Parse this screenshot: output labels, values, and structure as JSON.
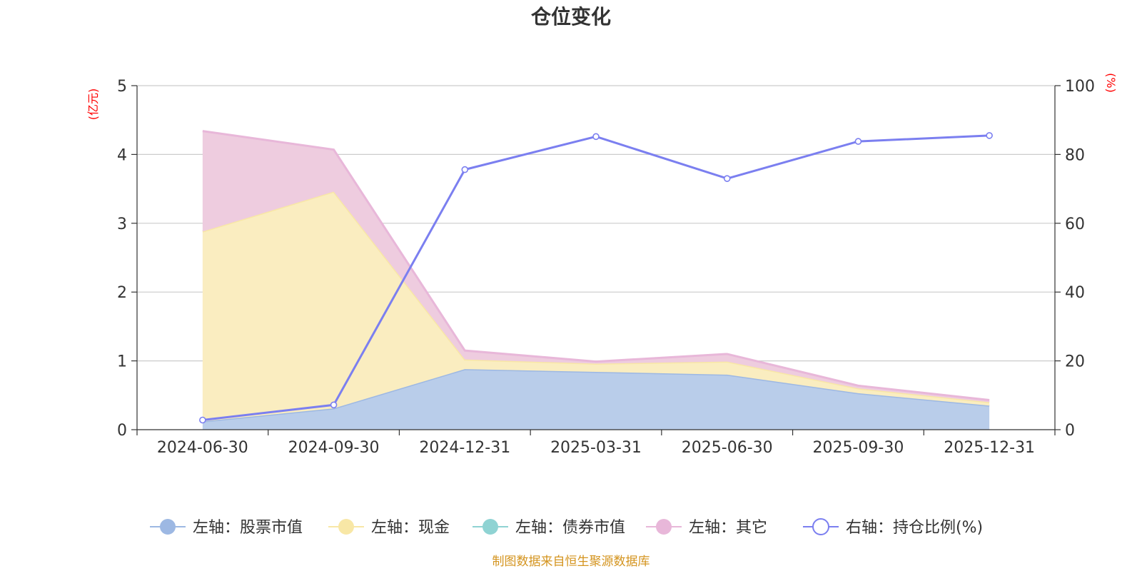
{
  "chart_data": {
    "type": "area",
    "title": "仓位变化",
    "categories": [
      "2024-06-30",
      "2024-09-30",
      "2024-12-31",
      "2025-03-31",
      "2025-06-30",
      "2025-09-30",
      "2025-12-31"
    ],
    "left_axis": {
      "unit": "(亿元)",
      "ylim": [
        0,
        5
      ],
      "ticks": [
        "0",
        "1",
        "2",
        "3",
        "4",
        "5"
      ]
    },
    "right_axis": {
      "unit": "(%)",
      "ylim": [
        0,
        100
      ],
      "ticks": [
        "0",
        "20",
        "40",
        "60",
        "80",
        "100"
      ]
    },
    "stacked_series": [
      {
        "name": "左轴：股票市值",
        "color": "#9db8e3",
        "fill": "#b9cdea",
        "values": [
          0.12,
          0.31,
          0.88,
          0.84,
          0.8,
          0.53,
          0.35
        ]
      },
      {
        "name": "左轴：现金",
        "color": "#f8e7a6",
        "fill": "#faedc0",
        "values": [
          2.76,
          3.15,
          0.14,
          0.12,
          0.19,
          0.07,
          0.05
        ]
      },
      {
        "name": "左轴：债券市值",
        "color": "#8fd3d3",
        "fill": "#b0e0e0",
        "values": [
          0,
          0,
          0,
          0,
          0,
          0,
          0
        ]
      },
      {
        "name": "左轴：其它",
        "color": "#e8b7d9",
        "fill": "#eeccdf",
        "values": [
          1.46,
          0.61,
          0.13,
          0.03,
          0.11,
          0.04,
          0.03
        ]
      }
    ],
    "line_series": {
      "name": "右轴：持仓比例(%)",
      "color": "#7b7ff0",
      "values": [
        2.8,
        7.2,
        75.6,
        85.2,
        73.0,
        83.8,
        85.5
      ]
    },
    "grid": true,
    "legend_position": "bottom"
  },
  "footer": {
    "source": "制图数据来自恒生聚源数据库"
  }
}
